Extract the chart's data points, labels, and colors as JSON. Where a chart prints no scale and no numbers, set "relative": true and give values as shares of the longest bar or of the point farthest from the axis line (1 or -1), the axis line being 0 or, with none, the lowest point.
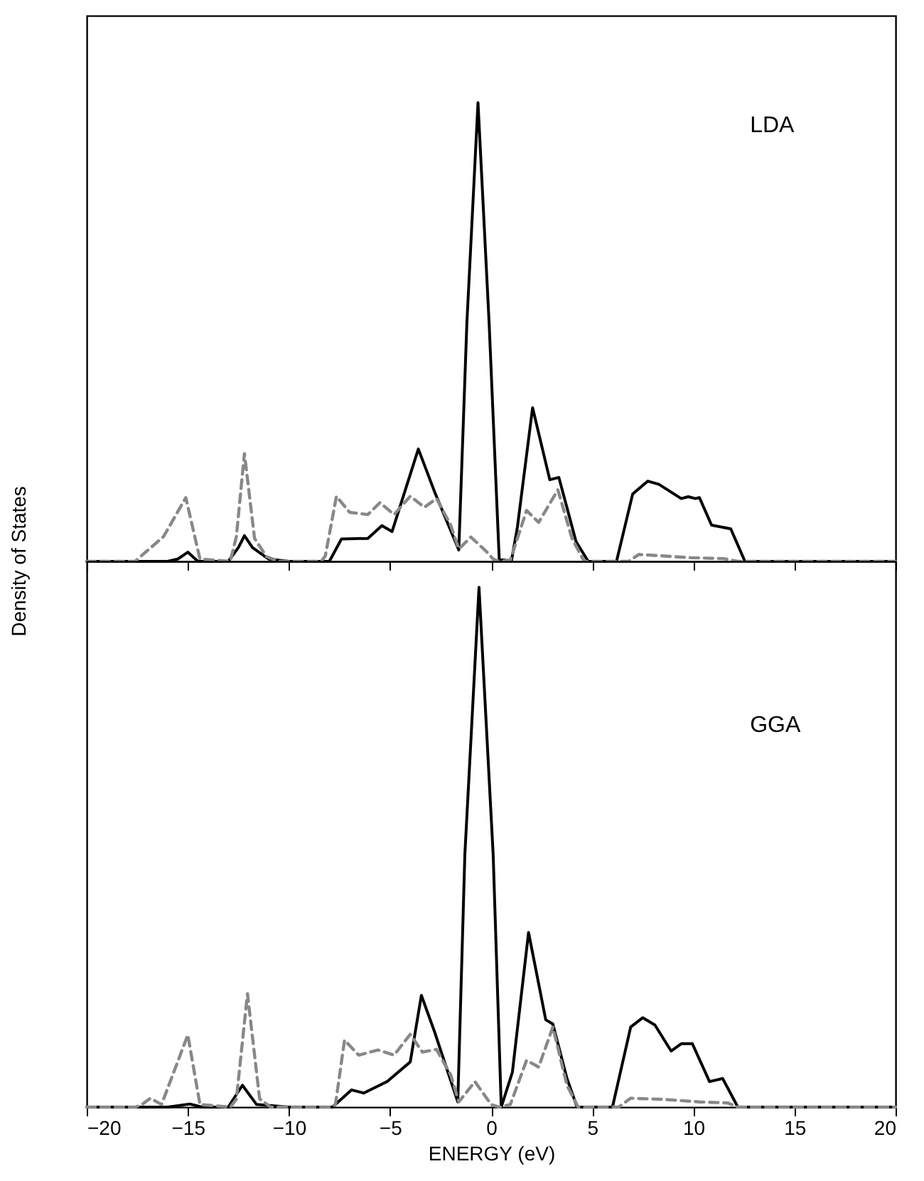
{
  "chart_data": [
    {
      "type": "line",
      "relative": true,
      "ylabel": "Density of States",
      "annotations": [
        "LDA"
      ],
      "xlim": [
        -20,
        20
      ],
      "xticks": [
        {
          "value": -20,
          "label": null
        },
        {
          "value": -15,
          "label": null
        },
        {
          "value": -10,
          "label": null
        },
        {
          "value": -5,
          "label": null
        },
        {
          "value": 0,
          "label": null
        },
        {
          "value": 5,
          "label": null
        },
        {
          "value": 10,
          "label": null
        },
        {
          "value": 15,
          "label": null
        },
        {
          "value": 20,
          "label": null
        }
      ],
      "tick_labels": false,
      "series": [
        {
          "color": "#000000",
          "line_style": "solid",
          "x": [
            -20,
            -16,
            -15.5,
            -15,
            -14.5,
            -13,
            -12.5,
            -12.2,
            -11.8,
            -11,
            -10,
            -8,
            -7.4,
            -6.1,
            -5.4,
            -4.9,
            -3.6,
            -2.8,
            -1.6,
            -1.2,
            -0.65,
            -0.1,
            0.4,
            1.0,
            1.3,
            2.05,
            2.9,
            3.35,
            4.2,
            4.8,
            6.2,
            7.0,
            7.75,
            8.3,
            9.4,
            9.75,
            10.1,
            10.3,
            10.9,
            11.85,
            12.55,
            20
          ],
          "values": [
            0,
            0,
            0.005,
            0.02,
            0,
            0,
            0.03,
            0.056,
            0.03,
            0.005,
            0,
            0,
            0.049,
            0.05,
            0.078,
            0.065,
            0.245,
            0.152,
            0.025,
            0.52,
            1,
            0.52,
            0.005,
            0,
            0.075,
            0.335,
            0.178,
            0.183,
            0.043,
            0,
            0,
            0.147,
            0.175,
            0.168,
            0.137,
            0.141,
            0.137,
            0.139,
            0.079,
            0.071,
            0,
            0
          ]
        },
        {
          "color": "#888888",
          "line_style": "dashed",
          "x": [
            -20,
            -17.6,
            -17.3,
            -16.2,
            -15.1,
            -14.4,
            -12.9,
            -12.6,
            -12.2,
            -11.7,
            -11.1,
            -10.5,
            -8.4,
            -8.2,
            -7.65,
            -7.0,
            -6.1,
            -5.5,
            -4.8,
            -4.0,
            -3.3,
            -2.7,
            -2.0,
            -1.6,
            -1.0,
            -0.2,
            0.1,
            0.4,
            0.95,
            1.75,
            2.35,
            3.3,
            4.0,
            4.6,
            6.8,
            7.3,
            8.45,
            9.85,
            11.5,
            12.2,
            20
          ],
          "values": [
            0,
            0,
            0.012,
            0.054,
            0.139,
            0.005,
            0,
            0.054,
            0.235,
            0.05,
            0.01,
            0,
            0,
            0.012,
            0.142,
            0.107,
            0.102,
            0.128,
            0.102,
            0.142,
            0.118,
            0.137,
            0.079,
            0.027,
            0.053,
            0.02,
            0.005,
            0,
            0.003,
            0.111,
            0.085,
            0.156,
            0.05,
            0,
            0,
            0.015,
            0.012,
            0.008,
            0.006,
            0,
            0
          ]
        }
      ]
    },
    {
      "type": "line",
      "relative": true,
      "xlabel": "ENERGY (eV)",
      "annotations": [
        "GGA"
      ],
      "xlim": [
        -20,
        20
      ],
      "xticks": [
        {
          "value": -20,
          "label": "−20"
        },
        {
          "value": -15,
          "label": "−15"
        },
        {
          "value": -10,
          "label": "−10"
        },
        {
          "value": -5,
          "label": "−5"
        },
        0,
        5,
        10,
        15,
        20
      ],
      "tick_labels": "x",
      "series": [
        {
          "color": "#000000",
          "line_style": "solid",
          "x": [
            -20,
            -16,
            -14.9,
            -14.3,
            -13,
            -12.3,
            -11.6,
            -10,
            -7.85,
            -6.9,
            -6.3,
            -5.15,
            -4.0,
            -3.45,
            -2.8,
            -1.65,
            -1.3,
            -0.6,
            0.1,
            0.5,
            1.05,
            1.85,
            2.7,
            3.05,
            3.75,
            4.25,
            6.0,
            6.9,
            7.5,
            8.1,
            8.9,
            9.4,
            9.95,
            10.8,
            11.45,
            12.2,
            20
          ],
          "values": [
            0,
            0,
            0.006,
            0,
            0,
            0.042,
            0.005,
            0,
            0,
            0.033,
            0.027,
            0.049,
            0.087,
            0.215,
            0.145,
            0.01,
            0.486,
            1,
            0.486,
            0,
            0.067,
            0.336,
            0.168,
            0.16,
            0.055,
            0,
            0,
            0.154,
            0.172,
            0.158,
            0.108,
            0.122,
            0.122,
            0.049,
            0.055,
            0,
            0
          ]
        },
        {
          "color": "#888888",
          "line_style": "dashed",
          "x": [
            -20,
            -17.6,
            -17.3,
            -16.85,
            -16.3,
            -15.0,
            -14.4,
            -12.9,
            -12.6,
            -12.05,
            -11.45,
            -10.9,
            -7.9,
            -7.7,
            -7.25,
            -6.55,
            -5.6,
            -4.8,
            -4.0,
            -3.4,
            -2.7,
            -2.0,
            -1.6,
            -0.8,
            0.0,
            0.4,
            0.95,
            1.75,
            2.35,
            3.05,
            3.75,
            4.3,
            6.3,
            6.9,
            8.45,
            10.3,
            11.7,
            12.2,
            20
          ],
          "values": [
            0,
            0,
            0.004,
            0.017,
            0.005,
            0.139,
            0.005,
            0,
            0.015,
            0.218,
            0.016,
            0,
            0,
            0.005,
            0.129,
            0.1,
            0.11,
            0.1,
            0.14,
            0.106,
            0.111,
            0.062,
            0.01,
            0.049,
            0.005,
            0,
            0.005,
            0.09,
            0.077,
            0.154,
            0.042,
            0,
            0,
            0.017,
            0.015,
            0.01,
            0.008,
            0,
            0
          ]
        }
      ]
    }
  ]
}
